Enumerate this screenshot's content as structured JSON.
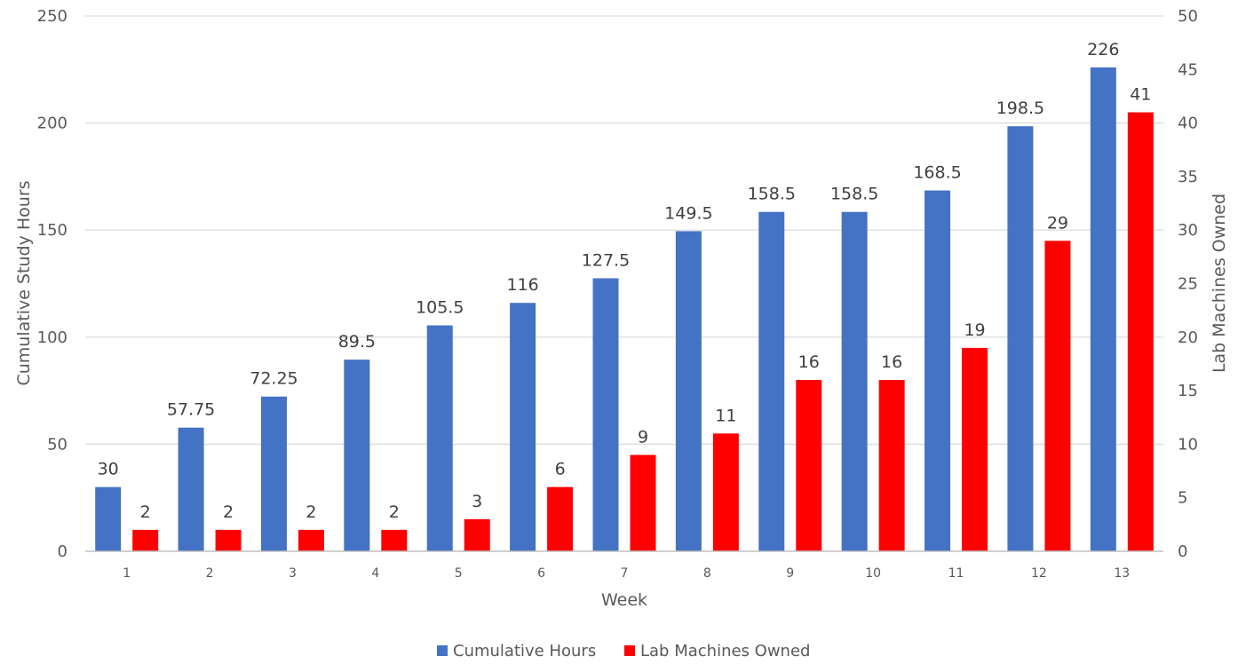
{
  "chart_data": {
    "type": "bar",
    "title": "",
    "xlabel": "Week",
    "ylabel_left": "Cumulative Study Hours",
    "ylabel_right": "Lab Machines Owned",
    "categories": [
      "1",
      "2",
      "3",
      "4",
      "5",
      "6",
      "7",
      "8",
      "9",
      "10",
      "11",
      "12",
      "13"
    ],
    "series": [
      {
        "name": "Cumulative Hours",
        "axis": "left",
        "color": "#4472C4",
        "values": [
          30,
          57.75,
          72.25,
          89.5,
          105.5,
          116,
          127.5,
          149.5,
          158.5,
          158.5,
          168.5,
          198.5,
          226
        ]
      },
      {
        "name": "Lab Machines Owned",
        "axis": "right",
        "color": "#FF0000",
        "values": [
          2,
          2,
          2,
          2,
          3,
          6,
          9,
          11,
          16,
          16,
          19,
          29,
          41
        ]
      }
    ],
    "ylim_left": [
      0,
      250
    ],
    "yticks_left": [
      0,
      50,
      100,
      150,
      200,
      250
    ],
    "ylim_right": [
      0,
      50
    ],
    "yticks_right": [
      0,
      5,
      10,
      15,
      20,
      25,
      30,
      35,
      40,
      45,
      50
    ],
    "grid": true,
    "legend_position": "bottom"
  }
}
